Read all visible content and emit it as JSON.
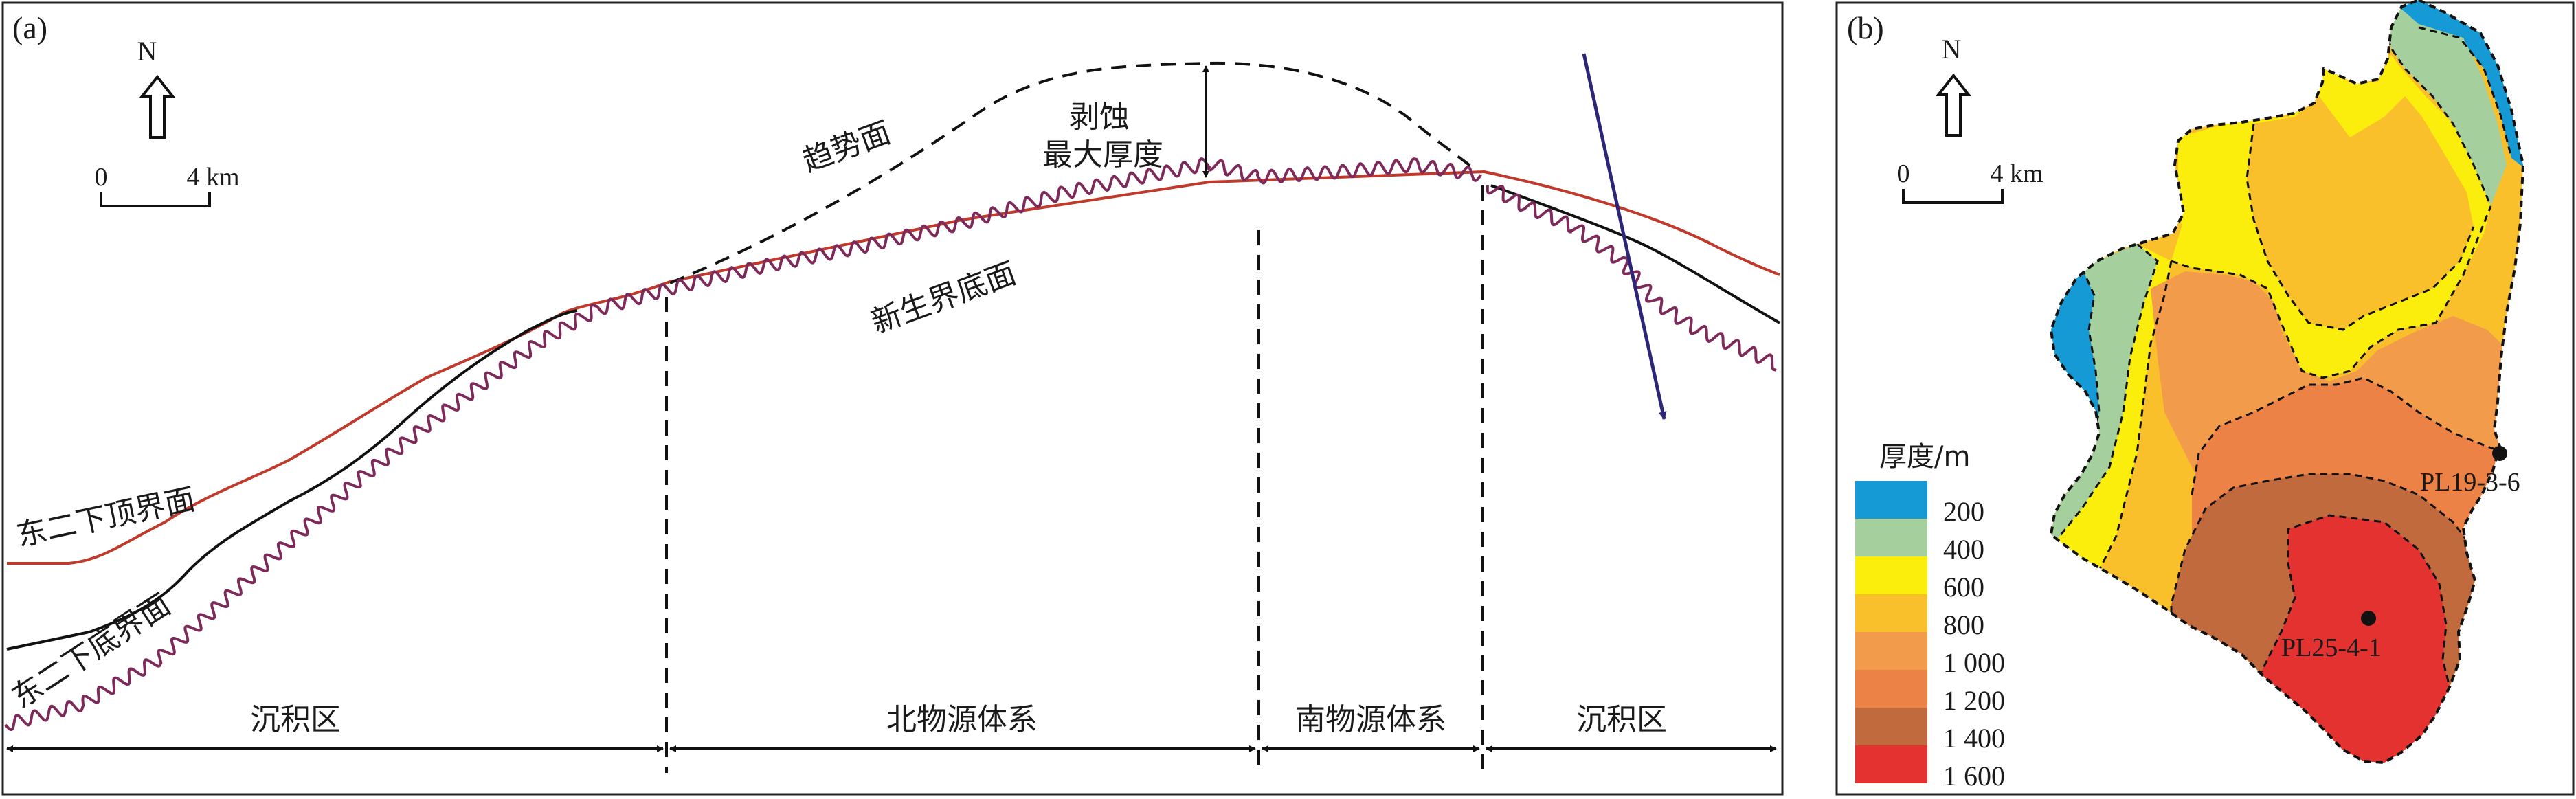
{
  "panel_a": {
    "label": "(a)",
    "north": "N",
    "scale": {
      "zero": "0",
      "end": "4 km"
    },
    "surfaces": {
      "trend": "趋势面",
      "erosion_line1": "剥蚀",
      "erosion_line2": "最大厚度",
      "cenozoic_base": "新生界底面",
      "dong2_top": "东二下顶界面",
      "dong2_bottom": "东二下底界面"
    },
    "zones": [
      "沉积区",
      "北物源体系",
      "南物源体系",
      "沉积区"
    ],
    "colors": {
      "red_line": "#c0392b",
      "wavy_line": "#7d2a5a",
      "fault": "#2c2678"
    }
  },
  "panel_b": {
    "label": "(b)",
    "north": "N",
    "scale": {
      "zero": "0",
      "end": "4 km"
    },
    "legend_title": "厚度/m",
    "legend": [
      {
        "label": "200",
        "color": "#159ad6"
      },
      {
        "label": "400",
        "color": "#a5cf9d"
      },
      {
        "label": "600",
        "color": "#fbee0c"
      },
      {
        "label": "800",
        "color": "#f9c02c"
      },
      {
        "label": "1 000",
        "color": "#f29b4b"
      },
      {
        "label": "1 200",
        "color": "#ed8247"
      },
      {
        "label": "1 400",
        "color": "#c06a3e"
      },
      {
        "label": "1 600",
        "color": "#e3322f"
      }
    ],
    "wells": [
      {
        "name": "PL19-3-6"
      },
      {
        "name": "PL25-4-1"
      }
    ]
  }
}
